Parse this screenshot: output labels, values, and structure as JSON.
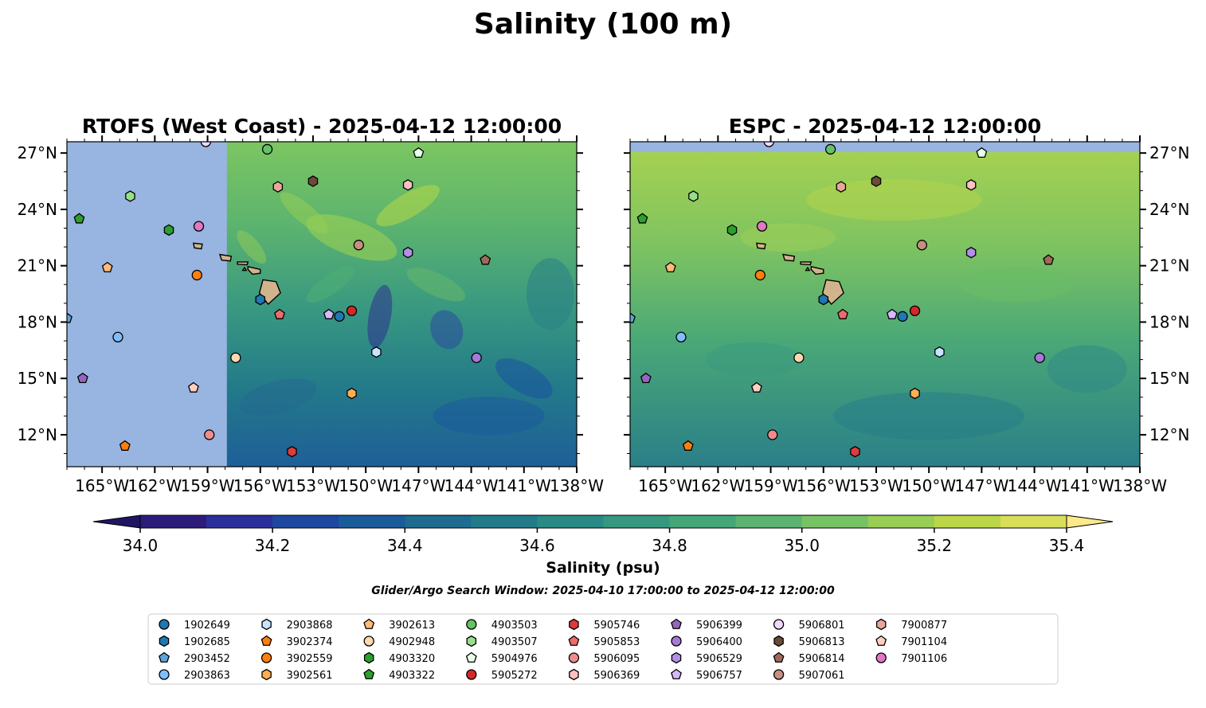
{
  "figure": {
    "title": "Salinity (100 m)",
    "colorbar_label": "Salinity (psu)",
    "search_window_note": "Glider/Argo Search Window: 2025-04-10 17:00:00 to 2025-04-12 12:00:00"
  },
  "colors": {
    "land_mask": "#98b4e0",
    "island_fill": "#d2b48c",
    "colorbar_under": "#1e1662",
    "colorbar_over": "#fde98a",
    "colorbar_levels": [
      "#2c1c7a",
      "#2b2f9c",
      "#1e47a0",
      "#1a5b9a",
      "#1e6c90",
      "#237b89",
      "#2a8a85",
      "#35987f",
      "#45a679",
      "#5ab470",
      "#77c264",
      "#98ce56",
      "#bcd649",
      "#d8de5a"
    ]
  },
  "chart_data": [
    {
      "type": "heatmap",
      "title": "RTOFS (West Coast) - 2025-04-12 12:00:00",
      "variable": "Salinity (psu)",
      "depth": "100 m",
      "xlim": [
        -167,
        -138
      ],
      "ylim": [
        10.3,
        27.6
      ],
      "xticks": [
        -165,
        -162,
        -159,
        -156,
        -153,
        -150,
        -147,
        -144,
        -141,
        -138
      ],
      "yticks": [
        12,
        15,
        18,
        21,
        24,
        27
      ],
      "xtick_labels": [
        "165°W",
        "162°W",
        "159°W",
        "156°W",
        "153°W",
        "150°W",
        "147°W",
        "144°W",
        "141°W",
        "138°W"
      ],
      "ytick_labels": [
        "12°N",
        "15°N",
        "18°N",
        "21°N",
        "24°N",
        "27°N"
      ],
      "ytick_side": "left",
      "data_extent_lon": [
        -157.9,
        -138
      ],
      "no_data_region": "west of 157.9°W (masked)",
      "field_summary": "saltier (~35.0-35.3) in north, fresher (~34.4-34.6) in south, eddies throughout"
    },
    {
      "type": "heatmap",
      "title": "ESPC - 2025-04-12 12:00:00",
      "variable": "Salinity (psu)",
      "depth": "100 m",
      "xlim": [
        -167,
        -138
      ],
      "ylim": [
        10.3,
        27.6
      ],
      "xticks": [
        -165,
        -162,
        -159,
        -156,
        -153,
        -150,
        -147,
        -144,
        -141,
        -138
      ],
      "yticks": [
        12,
        15,
        18,
        21,
        24,
        27
      ],
      "xtick_labels": [
        "165°W",
        "162°W",
        "159°W",
        "156°W",
        "153°W",
        "150°W",
        "147°W",
        "144°W",
        "141°W",
        "138°W"
      ],
      "ytick_labels": [
        "12°N",
        "15°N",
        "18°N",
        "21°N",
        "24°N",
        "27°N"
      ],
      "ytick_side": "right",
      "data_extent_lat": [
        10.3,
        27.05
      ],
      "field_summary": "saltier (~35.1-35.3) in north, fresher (~34.6-34.8) in south"
    },
    {
      "type": "colorbar",
      "label": "Salinity (psu)",
      "vmin": 34.0,
      "vmax": 35.4,
      "level_step": 0.1,
      "extend": "both",
      "tick_values": [
        34.0,
        34.2,
        34.4,
        34.6,
        34.8,
        35.0,
        35.2,
        35.4
      ],
      "tick_labels": [
        "34.0",
        "34.2",
        "34.4",
        "34.6",
        "34.8",
        "35.0",
        "35.2",
        "35.4"
      ]
    }
  ],
  "islands": [
    [
      [
        -155.85,
        20.25
      ],
      [
        -155.1,
        20.15
      ],
      [
        -154.85,
        19.55
      ],
      [
        -155.55,
        18.95
      ],
      [
        -156.05,
        19.55
      ]
    ],
    [
      [
        -156.7,
        20.95
      ],
      [
        -156.0,
        20.8
      ],
      [
        -156.0,
        20.6
      ],
      [
        -156.45,
        20.55
      ],
      [
        -156.7,
        20.8
      ]
    ],
    [
      [
        -157.3,
        21.2
      ],
      [
        -156.7,
        21.2
      ],
      [
        -156.75,
        21.05
      ],
      [
        -157.3,
        21.08
      ]
    ],
    [
      [
        -158.3,
        21.6
      ],
      [
        -157.65,
        21.5
      ],
      [
        -157.7,
        21.25
      ],
      [
        -158.2,
        21.3
      ]
    ],
    [
      [
        -159.8,
        22.2
      ],
      [
        -159.3,
        22.15
      ],
      [
        -159.35,
        21.9
      ],
      [
        -159.75,
        21.95
      ]
    ],
    [
      [
        -156.9,
        20.9
      ],
      [
        -156.8,
        20.75
      ],
      [
        -157.0,
        20.75
      ]
    ]
  ],
  "observations": [
    {
      "id": "1902649",
      "marker": "circle",
      "color": "#1f77b4",
      "lon": -151.5,
      "lat": 18.3
    },
    {
      "id": "1902685",
      "marker": "hexagon",
      "color": "#1f77b4",
      "lon": -156.0,
      "lat": 19.2
    },
    {
      "id": "2903452",
      "marker": "pentagon",
      "color": "#5da5da",
      "lon": -167.0,
      "lat": 18.2
    },
    {
      "id": "2903863",
      "marker": "circle",
      "color": "#7fbfff",
      "lon": -164.1,
      "lat": 17.2
    },
    {
      "id": "2903868",
      "marker": "hexagon",
      "color": "#c6e4ff",
      "lon": -149.4,
      "lat": 16.4
    },
    {
      "id": "3902374",
      "marker": "pentagon",
      "color": "#ff7f0e",
      "lon": -163.7,
      "lat": 11.4
    },
    {
      "id": "3902559",
      "marker": "circle",
      "color": "#ff7f0e",
      "lon": -159.6,
      "lat": 20.5
    },
    {
      "id": "3902561",
      "marker": "hexagon",
      "color": "#ffae52",
      "lon": -150.8,
      "lat": 14.2
    },
    {
      "id": "3902613",
      "marker": "pentagon",
      "color": "#ffbb78",
      "lon": -164.7,
      "lat": 20.9
    },
    {
      "id": "4902948",
      "marker": "circle",
      "color": "#ffd8b0",
      "lon": -157.4,
      "lat": 16.1
    },
    {
      "id": "4903320",
      "marker": "hexagon",
      "color": "#2ca02c",
      "lon": -161.2,
      "lat": 22.9
    },
    {
      "id": "4903322",
      "marker": "pentagon",
      "color": "#2ca02c",
      "lon": -166.3,
      "lat": 23.5
    },
    {
      "id": "4903503",
      "marker": "circle",
      "color": "#66c266",
      "lon": -155.6,
      "lat": 27.2
    },
    {
      "id": "4903507",
      "marker": "hexagon",
      "color": "#98df8a",
      "lon": -163.4,
      "lat": 24.7
    },
    {
      "id": "5904976",
      "marker": "pentagon",
      "color": "#e8ffe8",
      "lon": -147.0,
      "lat": 27.0
    },
    {
      "id": "5905272",
      "marker": "circle",
      "color": "#d62728",
      "lon": -150.8,
      "lat": 18.6
    },
    {
      "id": "5905746",
      "marker": "hexagon",
      "color": "#e03a3c",
      "lon": -154.2,
      "lat": 11.1
    },
    {
      "id": "5905853",
      "marker": "pentagon",
      "color": "#f06a6a",
      "lon": -154.9,
      "lat": 18.4
    },
    {
      "id": "5906095",
      "marker": "circle",
      "color": "#f08c8c",
      "lon": -158.9,
      "lat": 12.0
    },
    {
      "id": "5906369",
      "marker": "hexagon",
      "color": "#ffc0c0",
      "lon": -147.6,
      "lat": 25.3
    },
    {
      "id": "5906399",
      "marker": "pentagon",
      "color": "#9467bd",
      "lon": -166.1,
      "lat": 15.0
    },
    {
      "id": "5906400",
      "marker": "circle",
      "color": "#a678d8",
      "lon": -143.7,
      "lat": 16.1
    },
    {
      "id": "5906529",
      "marker": "hexagon",
      "color": "#b48ee8",
      "lon": -147.6,
      "lat": 21.7
    },
    {
      "id": "5906757",
      "marker": "pentagon",
      "color": "#d8b8ff",
      "lon": -152.1,
      "lat": 18.4
    },
    {
      "id": "5906801",
      "marker": "circle",
      "color": "#f0d8ff",
      "lon": -159.1,
      "lat": 27.6
    },
    {
      "id": "5906813",
      "marker": "hexagon",
      "color": "#6b4a3a",
      "lon": -153.0,
      "lat": 25.5
    },
    {
      "id": "5906814",
      "marker": "pentagon",
      "color": "#a06a5a",
      "lon": -143.2,
      "lat": 21.3
    },
    {
      "id": "5907061",
      "marker": "circle",
      "color": "#c49080",
      "lon": -150.4,
      "lat": 22.1
    },
    {
      "id": "7900877",
      "marker": "hexagon",
      "color": "#e8a898",
      "lon": -155.0,
      "lat": 25.2
    },
    {
      "id": "7901104",
      "marker": "pentagon",
      "color": "#ffd0c0",
      "lon": -159.8,
      "lat": 14.5
    },
    {
      "id": "7901106",
      "marker": "circle",
      "color": "#e377c2",
      "lon": -159.5,
      "lat": 23.1
    }
  ],
  "legend": [
    {
      "id": "1902649",
      "marker": "circle",
      "color": "#1f77b4"
    },
    {
      "id": "1902685",
      "marker": "hexagon",
      "color": "#1f77b4"
    },
    {
      "id": "2903452",
      "marker": "pentagon",
      "color": "#5da5da"
    },
    {
      "id": "2903863",
      "marker": "circle",
      "color": "#7fbfff"
    },
    {
      "id": "2903868",
      "marker": "hexagon",
      "color": "#c6e4ff"
    },
    {
      "id": "3902374",
      "marker": "pentagon",
      "color": "#ff7f0e"
    },
    {
      "id": "3902559",
      "marker": "circle",
      "color": "#ff7f0e"
    },
    {
      "id": "3902561",
      "marker": "hexagon",
      "color": "#ffae52"
    },
    {
      "id": "3902613",
      "marker": "pentagon",
      "color": "#ffbb78"
    },
    {
      "id": "4902948",
      "marker": "circle",
      "color": "#ffd8b0"
    },
    {
      "id": "4903320",
      "marker": "hexagon",
      "color": "#2ca02c"
    },
    {
      "id": "4903322",
      "marker": "pentagon",
      "color": "#2ca02c"
    },
    {
      "id": "4903503",
      "marker": "circle",
      "color": "#66c266"
    },
    {
      "id": "4903507",
      "marker": "hexagon",
      "color": "#98df8a"
    },
    {
      "id": "5904976",
      "marker": "pentagon",
      "color": "#e8ffe8"
    },
    {
      "id": "5905272",
      "marker": "circle",
      "color": "#d62728"
    },
    {
      "id": "5905746",
      "marker": "hexagon",
      "color": "#e03a3c"
    },
    {
      "id": "5905853",
      "marker": "pentagon",
      "color": "#f06a6a"
    },
    {
      "id": "5906095",
      "marker": "circle",
      "color": "#f08c8c"
    },
    {
      "id": "5906369",
      "marker": "hexagon",
      "color": "#ffc0c0"
    },
    {
      "id": "5906399",
      "marker": "pentagon",
      "color": "#9467bd"
    },
    {
      "id": "5906400",
      "marker": "circle",
      "color": "#a678d8"
    },
    {
      "id": "5906529",
      "marker": "hexagon",
      "color": "#b48ee8"
    },
    {
      "id": "5906757",
      "marker": "pentagon",
      "color": "#d8b8ff"
    },
    {
      "id": "5906801",
      "marker": "circle",
      "color": "#f0d8ff"
    },
    {
      "id": "5906813",
      "marker": "hexagon",
      "color": "#6b4a3a"
    },
    {
      "id": "5906814",
      "marker": "pentagon",
      "color": "#a06a5a"
    },
    {
      "id": "5907061",
      "marker": "circle",
      "color": "#c49080"
    },
    {
      "id": "7900877",
      "marker": "hexagon",
      "color": "#e8a898"
    },
    {
      "id": "7901104",
      "marker": "pentagon",
      "color": "#ffd0c0"
    },
    {
      "id": "7901106",
      "marker": "circle",
      "color": "#e377c2"
    }
  ]
}
